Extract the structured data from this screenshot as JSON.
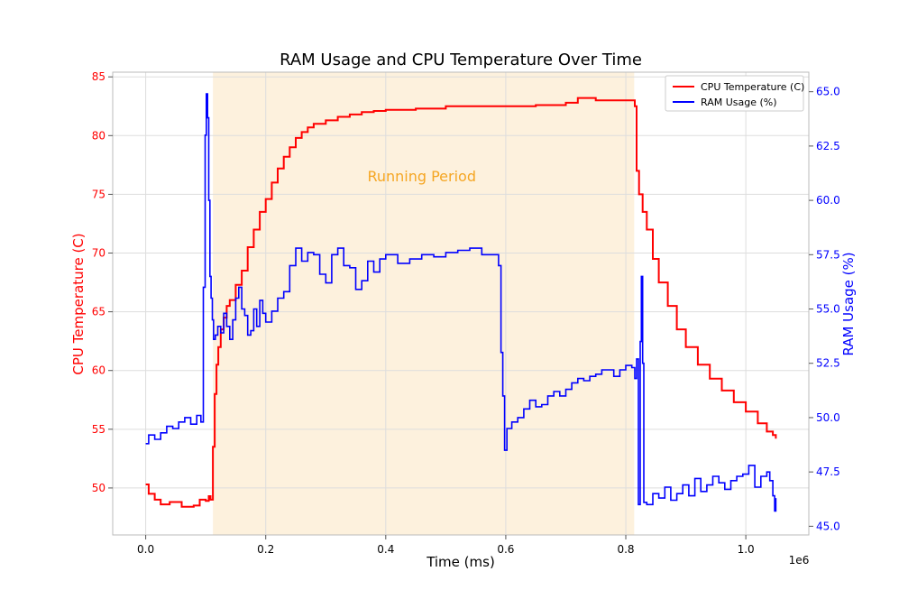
{
  "chart_data": {
    "type": "line",
    "title": "RAM Usage and CPU Temperature Over Time",
    "xlabel": "Time (ms)",
    "x_offset_label": "1e6",
    "xlim": [
      -55000,
      1105000
    ],
    "x_ticks": [
      0,
      200000,
      400000,
      600000,
      800000,
      1000000
    ],
    "x_tick_labels": [
      "0.0",
      "0.2",
      "0.4",
      "0.6",
      "0.8",
      "1.0"
    ],
    "y_left": {
      "label": "CPU Temperature (C)",
      "color": "#ff0000",
      "ylim": [
        46.0,
        85.4
      ],
      "ticks": [
        50,
        55,
        60,
        65,
        70,
        75,
        80,
        85
      ],
      "tick_labels": [
        "50",
        "55",
        "60",
        "65",
        "70",
        "75",
        "80",
        "85"
      ]
    },
    "y_right": {
      "label": "RAM Usage (%)",
      "color": "#0000ff",
      "ylim": [
        44.6,
        65.9
      ],
      "ticks": [
        45.0,
        47.5,
        50.0,
        52.5,
        55.0,
        57.5,
        60.0,
        62.5,
        65.0
      ],
      "tick_labels": [
        "45.0",
        "47.5",
        "50.0",
        "52.5",
        "55.0",
        "57.5",
        "60.0",
        "62.5",
        "65.0"
      ]
    },
    "grid": true,
    "legend_position": "top-right",
    "shaded_region": {
      "x_start": 112000,
      "x_end": 814000,
      "label": "Running Period",
      "fill_color": "#fdf1dd",
      "label_color": "#f5a623",
      "label_x": 460000,
      "label_y": 76.1
    },
    "series": [
      {
        "name": "CPU Temperature (C)",
        "axis": "left",
        "color": "#ff0000",
        "x": [
          0,
          5000,
          15000,
          25000,
          40000,
          60000,
          80000,
          90000,
          100000,
          105000,
          108000,
          112000,
          115000,
          118000,
          121000,
          125000,
          130000,
          135000,
          140000,
          150000,
          160000,
          170000,
          180000,
          190000,
          200000,
          210000,
          220000,
          230000,
          240000,
          250000,
          260000,
          270000,
          280000,
          300000,
          320000,
          340000,
          360000,
          380000,
          400000,
          450000,
          500000,
          550000,
          600000,
          650000,
          700000,
          720000,
          750000,
          780000,
          800000,
          810000,
          815000,
          818000,
          822000,
          828000,
          835000,
          845000,
          855000,
          870000,
          885000,
          900000,
          920000,
          940000,
          960000,
          980000,
          1000000,
          1020000,
          1035000,
          1045000,
          1050000
        ],
        "values": [
          50.3,
          49.5,
          49.0,
          48.6,
          48.8,
          48.4,
          48.5,
          49.0,
          48.9,
          49.3,
          49.0,
          53.5,
          58.0,
          60.5,
          62.0,
          63.5,
          64.5,
          65.5,
          66.0,
          67.3,
          68.5,
          70.5,
          72.0,
          73.5,
          74.6,
          76.0,
          77.2,
          78.2,
          79.0,
          79.8,
          80.3,
          80.7,
          81.0,
          81.3,
          81.6,
          81.8,
          82.0,
          82.1,
          82.2,
          82.3,
          82.5,
          82.5,
          82.5,
          82.6,
          82.8,
          83.2,
          83.0,
          83.0,
          83.0,
          83.0,
          82.5,
          77.0,
          75.0,
          73.5,
          72.0,
          69.5,
          67.5,
          65.5,
          63.5,
          62.0,
          60.5,
          59.3,
          58.3,
          57.3,
          56.5,
          55.5,
          54.8,
          54.5,
          54.2
        ]
      },
      {
        "name": "RAM Usage (%)",
        "axis": "right",
        "color": "#0000ff",
        "x": [
          0,
          5000,
          15000,
          25000,
          35000,
          45000,
          55000,
          65000,
          75000,
          85000,
          92000,
          96000,
          99000,
          101000,
          103000,
          105000,
          107000,
          109000,
          111000,
          113000,
          116000,
          120000,
          125000,
          130000,
          135000,
          140000,
          145000,
          150000,
          155000,
          160000,
          165000,
          170000,
          175000,
          180000,
          185000,
          190000,
          195000,
          200000,
          210000,
          220000,
          230000,
          240000,
          250000,
          260000,
          270000,
          280000,
          290000,
          300000,
          310000,
          320000,
          330000,
          340000,
          350000,
          360000,
          370000,
          380000,
          390000,
          400000,
          420000,
          440000,
          460000,
          480000,
          500000,
          520000,
          540000,
          560000,
          580000,
          588000,
          592000,
          595000,
          598000,
          602000,
          610000,
          620000,
          630000,
          640000,
          650000,
          660000,
          670000,
          680000,
          690000,
          700000,
          710000,
          720000,
          730000,
          740000,
          750000,
          760000,
          770000,
          780000,
          790000,
          800000,
          810000,
          815000,
          818000,
          821000,
          824000,
          826000,
          828000,
          830000,
          835000,
          845000,
          855000,
          865000,
          875000,
          885000,
          895000,
          905000,
          915000,
          925000,
          935000,
          945000,
          955000,
          965000,
          975000,
          985000,
          995000,
          1005000,
          1015000,
          1025000,
          1035000,
          1040000,
          1045000,
          1048000,
          1050000
        ],
        "values": [
          48.8,
          49.2,
          49.0,
          49.3,
          49.6,
          49.5,
          49.8,
          50.0,
          49.7,
          50.1,
          49.8,
          56.0,
          63.0,
          64.9,
          63.8,
          60.0,
          56.5,
          55.5,
          54.5,
          53.6,
          53.8,
          54.2,
          53.9,
          54.8,
          54.2,
          53.6,
          54.5,
          55.5,
          56.0,
          55.0,
          54.7,
          53.8,
          54.0,
          55.0,
          54.2,
          55.4,
          54.8,
          54.4,
          54.9,
          55.5,
          55.8,
          57.0,
          57.8,
          57.2,
          57.6,
          57.5,
          56.6,
          56.2,
          57.5,
          57.8,
          57.0,
          56.9,
          55.9,
          56.3,
          57.2,
          56.7,
          57.3,
          57.5,
          57.1,
          57.3,
          57.5,
          57.4,
          57.6,
          57.7,
          57.8,
          57.5,
          57.5,
          57.0,
          53.0,
          51.0,
          48.5,
          49.5,
          49.8,
          50.0,
          50.4,
          50.8,
          50.5,
          50.6,
          51.0,
          51.2,
          51.0,
          51.3,
          51.6,
          51.8,
          51.7,
          51.9,
          52.0,
          52.2,
          52.2,
          51.9,
          52.2,
          52.4,
          52.3,
          51.8,
          52.7,
          46.0,
          53.5,
          56.5,
          52.5,
          46.1,
          46.0,
          46.5,
          46.3,
          46.8,
          46.2,
          46.5,
          46.9,
          46.4,
          47.2,
          46.6,
          46.9,
          47.3,
          47.0,
          46.7,
          47.1,
          47.3,
          47.4,
          47.8,
          46.8,
          47.3,
          47.5,
          47.1,
          46.4,
          45.7,
          46.3
        ]
      }
    ]
  }
}
